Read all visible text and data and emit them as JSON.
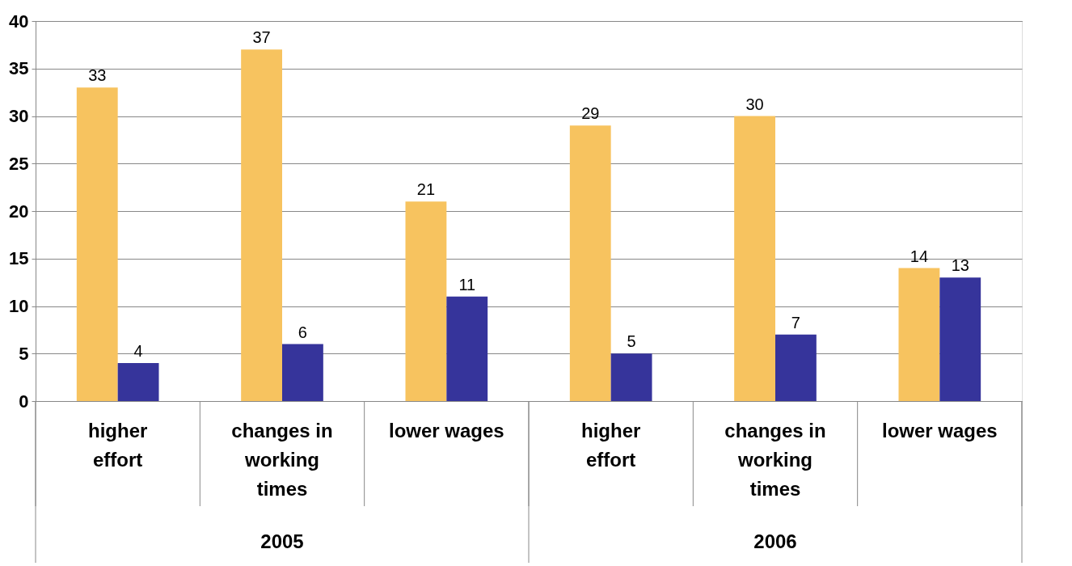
{
  "chart_data": {
    "type": "bar",
    "categories": [
      "higher effort",
      "changes in working times",
      "lower wages",
      "higher effort",
      "changes in working times",
      "lower wages"
    ],
    "series": [
      {
        "color": "#f7c35f",
        "values": [
          33,
          37,
          21,
          29,
          30,
          14
        ]
      },
      {
        "color": "#36349b",
        "values": [
          4,
          6,
          11,
          5,
          7,
          13
        ]
      }
    ],
    "ylim": [
      0,
      40
    ],
    "yticks": [
      0,
      5,
      10,
      15,
      20,
      25,
      30,
      35,
      40
    ],
    "grid": "y",
    "data_labels": true,
    "legend": false,
    "annotations": [
      "2005",
      "2006"
    ]
  }
}
